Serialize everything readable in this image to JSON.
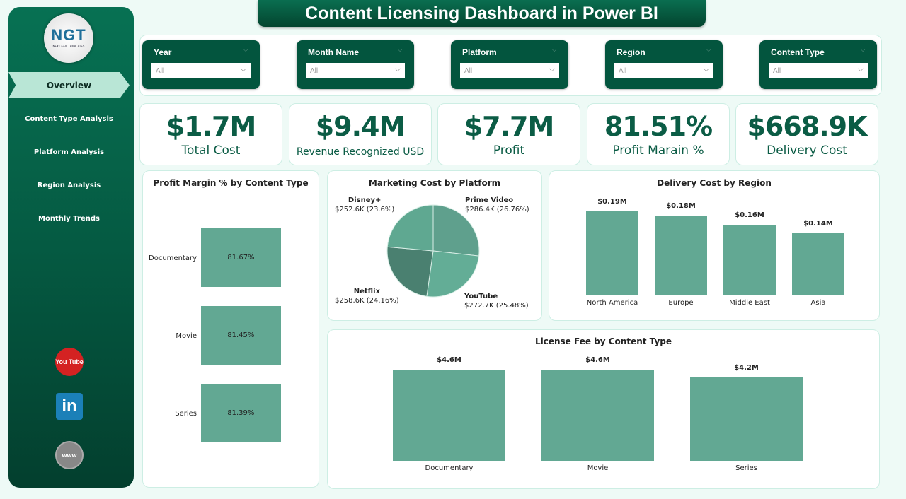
{
  "header": {
    "title": "Content Licensing Dashboard in Power BI"
  },
  "sidebar": {
    "logo_text": "NGT",
    "logo_sub": "NEXT GEN TEMPLATES",
    "items": [
      {
        "label": "Overview",
        "active": true
      },
      {
        "label": "Content Type Analysis"
      },
      {
        "label": "Platform Analysis"
      },
      {
        "label": "Region Analysis"
      },
      {
        "label": "Monthly Trends"
      }
    ],
    "social": [
      {
        "icon": "youtube-icon",
        "label": "You Tube"
      },
      {
        "icon": "linkedin-icon",
        "label": "in"
      },
      {
        "icon": "globe-icon",
        "label": "www"
      }
    ]
  },
  "filters": [
    {
      "label": "Year",
      "value": "All"
    },
    {
      "label": "Month Name",
      "value": "All"
    },
    {
      "label": "Platform",
      "value": "All"
    },
    {
      "label": "Region",
      "value": "All"
    },
    {
      "label": "Content Type",
      "value": "All"
    }
  ],
  "kpis": [
    {
      "value": "$1.7M",
      "label": "Total Cost"
    },
    {
      "value": "$9.4M",
      "label": "Revenue Recognized USD"
    },
    {
      "value": "$7.7M",
      "label": "Profit"
    },
    {
      "value": "81.51%",
      "label": "Profit Marain %"
    },
    {
      "value": "$668.9K",
      "label": "Delivery Cost"
    }
  ],
  "colors": {
    "primary": "#03553e",
    "bar": "#62a893",
    "accent": "#b9e6d6"
  },
  "chart_data": [
    {
      "type": "bar",
      "orientation": "horizontal",
      "title": "Profit Margin % by Content Type",
      "categories": [
        "Documentary",
        "Movie",
        "Series"
      ],
      "values": [
        81.67,
        81.45,
        81.39
      ],
      "labels": [
        "81.67%",
        "81.45%",
        "81.39%"
      ]
    },
    {
      "type": "pie",
      "title": "Marketing Cost by Platform",
      "categories": [
        "Prime Video",
        "YouTube",
        "Netflix",
        "Disney+"
      ],
      "values": [
        286.4,
        272.7,
        258.6,
        252.6
      ],
      "labels": [
        "$286.4K (26.76%)",
        "$272.7K (25.48%)",
        "$258.6K (24.16%)",
        "$252.6K (23.6%)"
      ],
      "colors": [
        "#5fa08d",
        "#63ad96",
        "#4a8070",
        "#5fa891"
      ]
    },
    {
      "type": "bar",
      "title": "Delivery Cost by Region",
      "categories": [
        "North America",
        "Europe",
        "Middle East",
        "Asia"
      ],
      "values": [
        0.19,
        0.18,
        0.16,
        0.14
      ],
      "labels": [
        "$0.19M",
        "$0.18M",
        "$0.16M",
        "$0.14M"
      ]
    },
    {
      "type": "bar",
      "title": "License Fee by Content Type",
      "categories": [
        "Documentary",
        "Movie",
        "Series"
      ],
      "values": [
        4.6,
        4.6,
        4.2
      ],
      "labels": [
        "$4.6M",
        "$4.6M",
        "$4.2M"
      ]
    }
  ]
}
